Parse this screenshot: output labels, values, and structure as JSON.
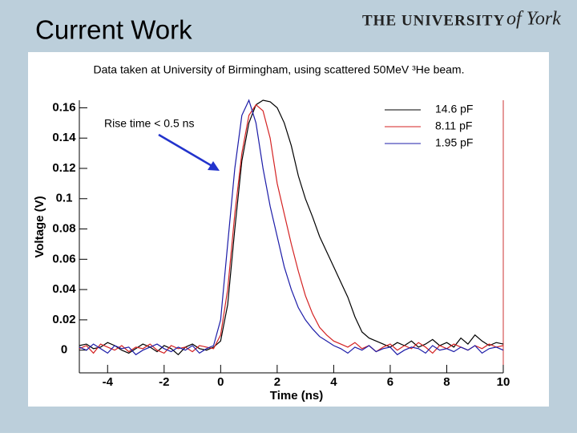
{
  "slide": {
    "title": "Current Work",
    "logo_main": "THE UNIVERSITY",
    "logo_script": "of York"
  },
  "chart_data": {
    "type": "line",
    "subtitle": "Data taken at University of Birmingham, using scattered 50MeV ³He beam.",
    "annotation": "Rise time < 0.5 ns",
    "xlabel": "Time (ns)",
    "ylabel": "Voltage (V)",
    "xlim": [
      -5,
      10
    ],
    "ylim": [
      -0.015,
      0.165
    ],
    "xticks": [
      -4,
      -2,
      0,
      2,
      4,
      6,
      8,
      10
    ],
    "yticks": [
      0,
      0.02,
      0.04,
      0.06,
      0.08,
      0.1,
      0.12,
      0.14,
      0.16
    ],
    "x": [
      -5,
      -4.75,
      -4.5,
      -4.25,
      -4,
      -3.75,
      -3.5,
      -3.25,
      -3,
      -2.75,
      -2.5,
      -2.25,
      -2,
      -1.75,
      -1.5,
      -1.25,
      -1,
      -0.75,
      -0.5,
      -0.25,
      0,
      0.25,
      0.5,
      0.75,
      1,
      1.25,
      1.5,
      1.75,
      2,
      2.25,
      2.5,
      2.75,
      3,
      3.25,
      3.5,
      3.75,
      4,
      4.25,
      4.5,
      4.75,
      5,
      5.25,
      5.5,
      5.75,
      6,
      6.25,
      6.5,
      6.75,
      7,
      7.25,
      7.5,
      7.75,
      8,
      8.25,
      8.5,
      8.75,
      9,
      9.25,
      9.5,
      9.75,
      10
    ],
    "series": [
      {
        "name": "14.6 pF",
        "color": "#000000",
        "values": [
          0.003,
          0.004,
          0.001,
          0.002,
          0.005,
          0.003,
          0.0,
          -0.002,
          0.001,
          0.004,
          0.002,
          -0.001,
          0.003,
          0.001,
          -0.003,
          0.002,
          0.004,
          0.001,
          0.0,
          0.002,
          0.006,
          0.03,
          0.08,
          0.125,
          0.15,
          0.162,
          0.165,
          0.164,
          0.16,
          0.15,
          0.135,
          0.115,
          0.1,
          0.088,
          0.075,
          0.065,
          0.055,
          0.045,
          0.035,
          0.022,
          0.012,
          0.008,
          0.006,
          0.004,
          0.002,
          0.005,
          0.003,
          0.006,
          0.002,
          0.004,
          0.007,
          0.003,
          0.005,
          0.002,
          0.008,
          0.004,
          0.01,
          0.006,
          0.003,
          0.005,
          0.004
        ]
      },
      {
        "name": "8.11 pF",
        "color": "#d42222",
        "values": [
          0.001,
          0.003,
          -0.002,
          0.004,
          0.002,
          0.0,
          0.003,
          -0.001,
          0.002,
          0.001,
          0.004,
          0.0,
          -0.002,
          0.003,
          0.001,
          0.002,
          -0.001,
          0.003,
          0.002,
          0.001,
          0.01,
          0.04,
          0.09,
          0.13,
          0.155,
          0.162,
          0.158,
          0.14,
          0.11,
          0.09,
          0.07,
          0.052,
          0.036,
          0.024,
          0.015,
          0.01,
          0.006,
          0.004,
          0.002,
          0.005,
          0.001,
          0.003,
          -0.001,
          0.002,
          0.004,
          0.0,
          0.003,
          0.001,
          0.005,
          0.002,
          -0.002,
          0.003,
          0.001,
          0.004,
          0.002,
          0.0,
          0.003,
          0.001,
          0.004,
          0.002,
          0.003
        ]
      },
      {
        "name": "1.95 pF",
        "color": "#1c1ca8",
        "values": [
          0.002,
          0.0,
          0.004,
          0.001,
          -0.002,
          0.003,
          0.001,
          0.002,
          -0.003,
          0.0,
          0.002,
          0.004,
          0.001,
          -0.001,
          0.002,
          0.0,
          0.003,
          -0.002,
          0.001,
          0.003,
          0.02,
          0.07,
          0.12,
          0.155,
          0.165,
          0.15,
          0.12,
          0.095,
          0.075,
          0.055,
          0.04,
          0.028,
          0.02,
          0.014,
          0.009,
          0.006,
          0.003,
          0.001,
          -0.002,
          0.002,
          0.0,
          0.003,
          -0.001,
          0.001,
          0.002,
          -0.003,
          0.0,
          0.002,
          0.001,
          -0.002,
          0.003,
          0.0,
          0.001,
          -0.001,
          0.002,
          0.0,
          0.003,
          -0.002,
          0.001,
          0.002,
          0.0
        ]
      }
    ]
  }
}
